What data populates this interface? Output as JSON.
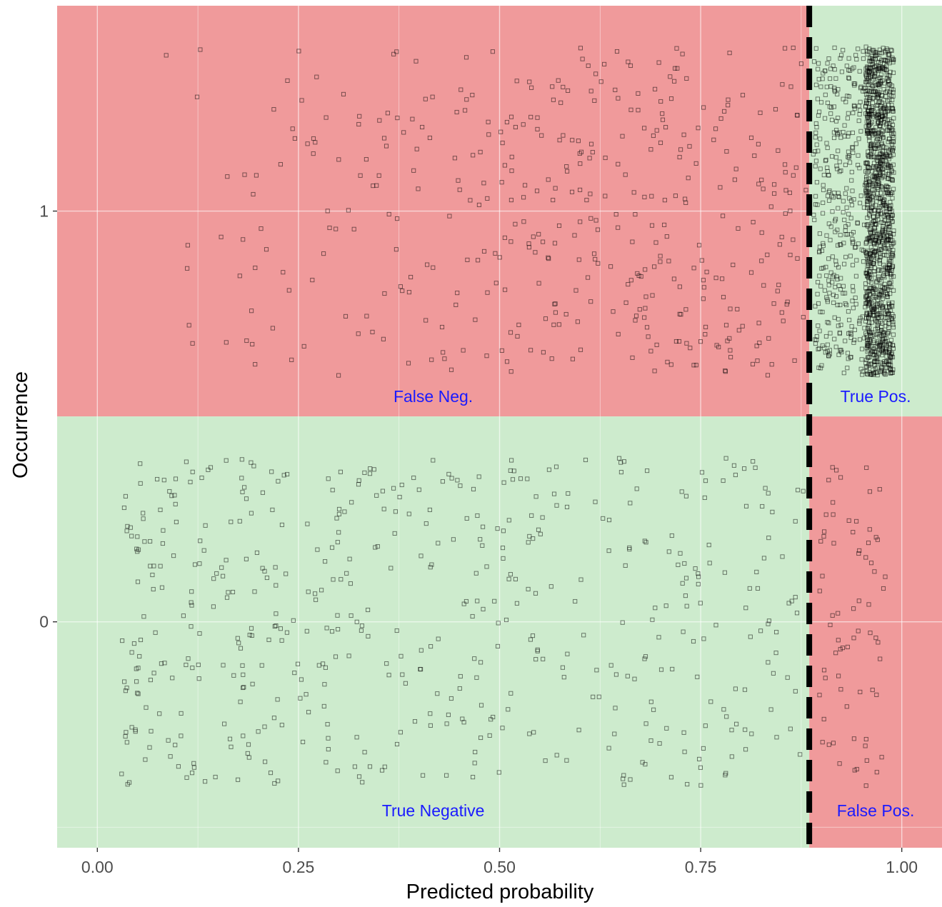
{
  "chart_data": {
    "type": "scatter",
    "xlabel": "Predicted probability",
    "ylabel": "Occurrence",
    "xlim": [
      -0.05,
      1.05
    ],
    "ylim": [
      -0.55,
      1.5
    ],
    "x_ticks": [
      0.0,
      0.25,
      0.5,
      0.75,
      1.0
    ],
    "x_tick_labels": [
      "0.00",
      "0.25",
      "0.50",
      "0.75",
      "1.00"
    ],
    "y_ticks": [
      0,
      1
    ],
    "y_tick_labels": [
      "0",
      "1"
    ],
    "threshold": 0.885,
    "grid": true,
    "jitter_range": 0.4,
    "point_counts": {
      "occurrence_1_below_threshold": 420,
      "occurrence_1_above_threshold": 1500,
      "occurrence_0_below_threshold": 520,
      "occurrence_0_above_threshold": 70
    },
    "x_range_occurrence_1": [
      0.07,
      0.99
    ],
    "x_range_occurrence_0": [
      0.03,
      0.98
    ],
    "quadrants": [
      {
        "label": "False Neg.",
        "occurrence": 1,
        "side": "below",
        "color": "#f09a9b"
      },
      {
        "label": "True Pos.",
        "occurrence": 1,
        "side": "above",
        "color": "#cdebcd"
      },
      {
        "label": "True Negative",
        "occurrence": 0,
        "side": "below",
        "color": "#cdebcd"
      },
      {
        "label": "False Pos.",
        "occurrence": 0,
        "side": "above",
        "color": "#f09a9b"
      }
    ],
    "colors": {
      "label_text": "#1a1aff",
      "points": "#000000",
      "threshold_line": "#000000"
    }
  }
}
